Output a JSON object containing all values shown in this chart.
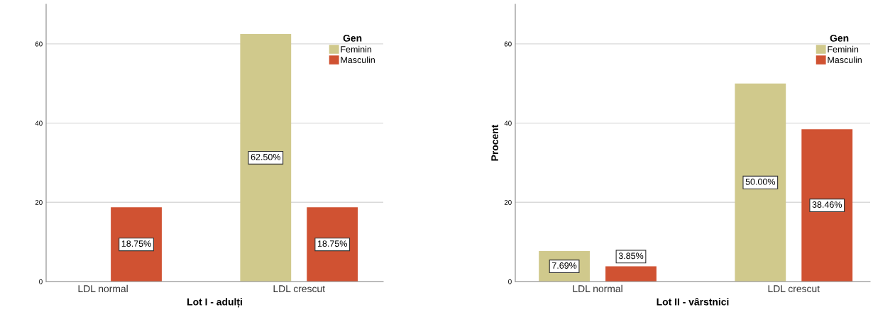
{
  "chart_data": [
    {
      "type": "bar",
      "xlabel": "Lot I - adulți",
      "categories": [
        "LDL normal",
        "LDL crescut"
      ],
      "legend_title": "Gen",
      "legend": "top right",
      "grid": "y",
      "ylim": [
        0,
        70
      ],
      "yticks": [
        0,
        20,
        40,
        60
      ],
      "series": [
        {
          "name": "Feminin",
          "color": "#d0c98c",
          "values": [
            0,
            62.5
          ],
          "value_labels": [
            null,
            "62.50%"
          ]
        },
        {
          "name": "Masculin",
          "color": "#d05232",
          "values": [
            18.75,
            18.75
          ],
          "value_labels": [
            "18.75%",
            "18.75%"
          ]
        }
      ]
    },
    {
      "type": "bar",
      "xlabel": "Lot II - vârstnici",
      "ylabel": "Procent",
      "categories": [
        "LDL normal",
        "LDL crescut"
      ],
      "legend_title": "Gen",
      "legend": "top right",
      "grid": "y",
      "ylim": [
        0,
        70
      ],
      "yticks": [
        0,
        20,
        40,
        60
      ],
      "series": [
        {
          "name": "Feminin",
          "color": "#d0c98c",
          "values": [
            7.69,
            50.0
          ],
          "value_labels": [
            "7.69%",
            "50.00%"
          ]
        },
        {
          "name": "Masculin",
          "color": "#d05232",
          "values": [
            3.85,
            38.46
          ],
          "value_labels": [
            "3.85%",
            "38.46%"
          ]
        }
      ]
    }
  ]
}
